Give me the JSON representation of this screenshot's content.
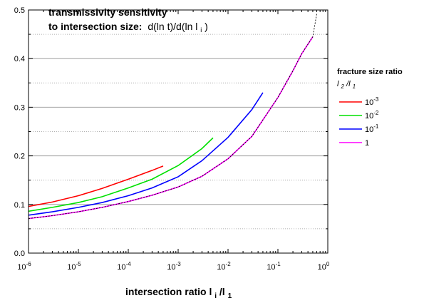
{
  "chart_data": {
    "type": "line",
    "title_line1": "transmissivity sensitivity",
    "title_line2_bold": "to intersection size:",
    "title_line2_formula": "d(ln t)/d(ln l",
    "title_line2_sub": "i",
    "title_line2_end": ")",
    "xlabel_main": "intersection ratio l",
    "xlabel_sub1": "i",
    "xlabel_slash": "/l",
    "xlabel_sub2": "1",
    "x_scale": "log",
    "xlim": [
      1e-06,
      1
    ],
    "ylim": [
      0,
      0.5
    ],
    "x_ticks": [
      {
        "value": 1e-06,
        "base": "10",
        "exp": "-6"
      },
      {
        "value": 1e-05,
        "base": "10",
        "exp": "-5"
      },
      {
        "value": 0.0001,
        "base": "10",
        "exp": "-4"
      },
      {
        "value": 0.001,
        "base": "10",
        "exp": "-3"
      },
      {
        "value": 0.01,
        "base": "10",
        "exp": "-2"
      },
      {
        "value": 0.1,
        "base": "10",
        "exp": "-1"
      },
      {
        "value": 1,
        "base": "10",
        "exp": "0"
      }
    ],
    "y_ticks": [
      {
        "value": 0.0,
        "label": "0.0"
      },
      {
        "value": 0.1,
        "label": "0.1"
      },
      {
        "value": 0.2,
        "label": "0.2"
      },
      {
        "value": 0.3,
        "label": "0.3"
      },
      {
        "value": 0.4,
        "label": "0.4"
      },
      {
        "value": 0.5,
        "label": "0.5"
      }
    ],
    "grid": {
      "major_y": true,
      "minor_y_dotted": true
    },
    "legend": {
      "placement": "right",
      "title": "fracture size ratio",
      "subtitle_l1": "l",
      "subtitle_sub1": "2",
      "subtitle_slash": "/l",
      "subtitle_sub2": "1",
      "entries": [
        {
          "base": "10",
          "exp": "-3",
          "color": "#ff0000"
        },
        {
          "base": "10",
          "exp": "-2",
          "color": "#00e000"
        },
        {
          "base": "10",
          "exp": "-1",
          "color": "#0000ff"
        },
        {
          "base": "1",
          "exp": "",
          "color": "#ff00ff"
        }
      ]
    },
    "series": [
      {
        "color": "#ff0000",
        "x": [
          1e-06,
          3e-06,
          1e-05,
          3e-05,
          0.0001,
          0.0003,
          0.0005
        ],
        "y": [
          0.096,
          0.105,
          0.118,
          0.133,
          0.152,
          0.17,
          0.179
        ]
      },
      {
        "color": "#00e000",
        "x": [
          1e-06,
          3e-06,
          1e-05,
          3e-05,
          0.0001,
          0.0003,
          0.001,
          0.003,
          0.005
        ],
        "y": [
          0.086,
          0.094,
          0.104,
          0.116,
          0.134,
          0.152,
          0.18,
          0.215,
          0.237
        ]
      },
      {
        "color": "#0000ff",
        "x": [
          1e-06,
          3e-06,
          1e-05,
          3e-05,
          0.0001,
          0.0003,
          0.001,
          0.003,
          0.01,
          0.03,
          0.05
        ],
        "y": [
          0.078,
          0.085,
          0.094,
          0.104,
          0.118,
          0.134,
          0.157,
          0.19,
          0.238,
          0.295,
          0.33
        ]
      },
      {
        "color": "#ff00ff",
        "x": [
          1e-06,
          3e-06,
          1e-05,
          3e-05,
          0.0001,
          0.0003,
          0.001,
          0.003,
          0.01,
          0.03,
          0.1,
          0.2,
          0.3,
          0.5
        ],
        "y": [
          0.071,
          0.077,
          0.085,
          0.094,
          0.106,
          0.119,
          0.136,
          0.158,
          0.194,
          0.24,
          0.32,
          0.375,
          0.41,
          0.445
        ]
      },
      {
        "color": "#000000",
        "dashed": true,
        "x": [
          1e-06,
          3e-06,
          1e-05,
          3e-05,
          0.0001,
          0.0003,
          0.001,
          0.003,
          0.01,
          0.03,
          0.1,
          0.2,
          0.3,
          0.5,
          0.6
        ],
        "y": [
          0.071,
          0.077,
          0.085,
          0.094,
          0.106,
          0.119,
          0.136,
          0.158,
          0.194,
          0.24,
          0.32,
          0.375,
          0.41,
          0.445,
          0.492
        ]
      }
    ]
  }
}
